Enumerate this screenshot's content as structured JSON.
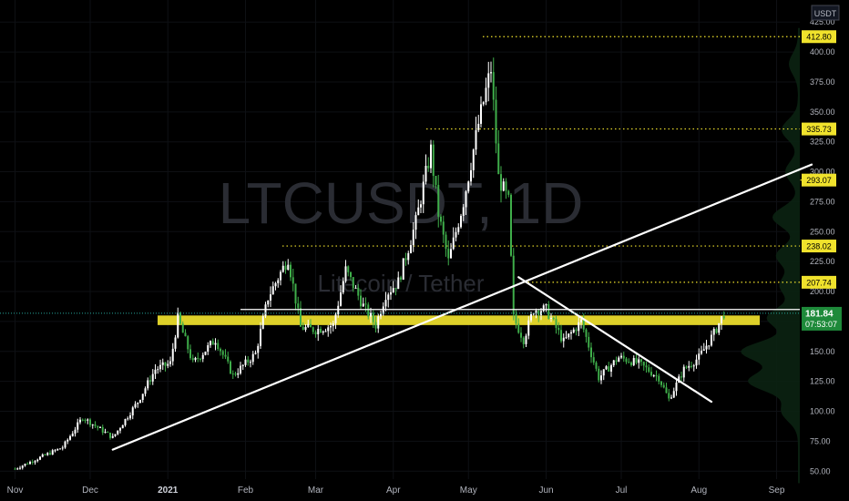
{
  "chart_data": {
    "type": "candlestick",
    "title": "LTCUSDT, 1D",
    "subtitle": "Litecoin / Tether",
    "currency": "USDT",
    "ylim": [
      35,
      432
    ],
    "y_ticks": [
      50,
      75,
      100,
      125,
      150,
      175,
      200,
      225,
      250,
      275,
      300,
      325,
      350,
      375,
      400,
      425
    ],
    "y_tick_labels": [
      "50.00",
      "75.00",
      "100.00",
      "125.00",
      "150.00",
      "175.00",
      "200.00",
      "225.00",
      "250.00",
      "275.00",
      "300.00",
      "325.00",
      "350.00",
      "375.00",
      "400.00",
      "425.00"
    ],
    "x_labels": [
      "Nov",
      "Dec",
      "2021",
      "Feb",
      "Mar",
      "Apr",
      "May",
      "Jun",
      "Jul",
      "Aug",
      "Sep"
    ],
    "bold_x_label": "2021",
    "price_levels": [
      {
        "value": 412.8,
        "label": "412.80"
      },
      {
        "value": 335.73,
        "label": "335.73"
      },
      {
        "value": 293.07,
        "label": "293.07"
      },
      {
        "value": 238.02,
        "label": "238.02"
      },
      {
        "value": 207.74,
        "label": "207.74"
      }
    ],
    "current_price": {
      "value": 181.84,
      "label": "181.84",
      "countdown": "07:53:07"
    },
    "support_zone": [
      172,
      180
    ],
    "trendlines": [
      {
        "from": [
          "2020-12-10",
          68
        ],
        "to": [
          "2021-09-15",
          306
        ],
        "color": "#ffffff"
      },
      {
        "from": [
          "2021-05-21",
          212
        ],
        "to": [
          "2021-08-06",
          108
        ],
        "color": "#ffffff"
      }
    ],
    "horizontal_line": {
      "value": 185,
      "color": "#ffffff"
    },
    "anchors": [
      [
        "2020-11-01",
        52
      ],
      [
        "2020-11-20",
        70
      ],
      [
        "2020-11-28",
        95
      ],
      [
        "2020-12-10",
        78
      ],
      [
        "2020-12-20",
        108
      ],
      [
        "2020-12-27",
        135
      ],
      [
        "2021-01-02",
        140
      ],
      [
        "2021-01-05",
        178
      ],
      [
        "2021-01-11",
        140
      ],
      [
        "2021-01-20",
        160
      ],
      [
        "2021-01-27",
        130
      ],
      [
        "2021-02-05",
        148
      ],
      [
        "2021-02-10",
        195
      ],
      [
        "2021-02-18",
        228
      ],
      [
        "2021-02-23",
        170
      ],
      [
        "2021-03-01",
        168
      ],
      [
        "2021-03-08",
        172
      ],
      [
        "2021-03-13",
        218
      ],
      [
        "2021-03-20",
        188
      ],
      [
        "2021-03-25",
        172
      ],
      [
        "2021-03-29",
        198
      ],
      [
        "2021-04-03",
        208
      ],
      [
        "2021-04-10",
        258
      ],
      [
        "2021-04-16",
        318
      ],
      [
        "2021-04-19",
        265
      ],
      [
        "2021-04-23",
        225
      ],
      [
        "2021-04-29",
        275
      ],
      [
        "2021-05-05",
        340
      ],
      [
        "2021-05-10",
        386
      ],
      [
        "2021-05-13",
        295
      ],
      [
        "2021-05-17",
        275
      ],
      [
        "2021-05-19",
        178
      ],
      [
        "2021-05-23",
        160
      ],
      [
        "2021-05-27",
        185
      ],
      [
        "2021-06-01",
        185
      ],
      [
        "2021-06-08",
        158
      ],
      [
        "2021-06-15",
        175
      ],
      [
        "2021-06-22",
        128
      ],
      [
        "2021-06-30",
        145
      ],
      [
        "2021-07-08",
        140
      ],
      [
        "2021-07-16",
        128
      ],
      [
        "2021-07-20",
        110
      ],
      [
        "2021-07-26",
        135
      ],
      [
        "2021-08-01",
        145
      ],
      [
        "2021-08-07",
        165
      ],
      [
        "2021-08-11",
        181.84
      ]
    ]
  }
}
